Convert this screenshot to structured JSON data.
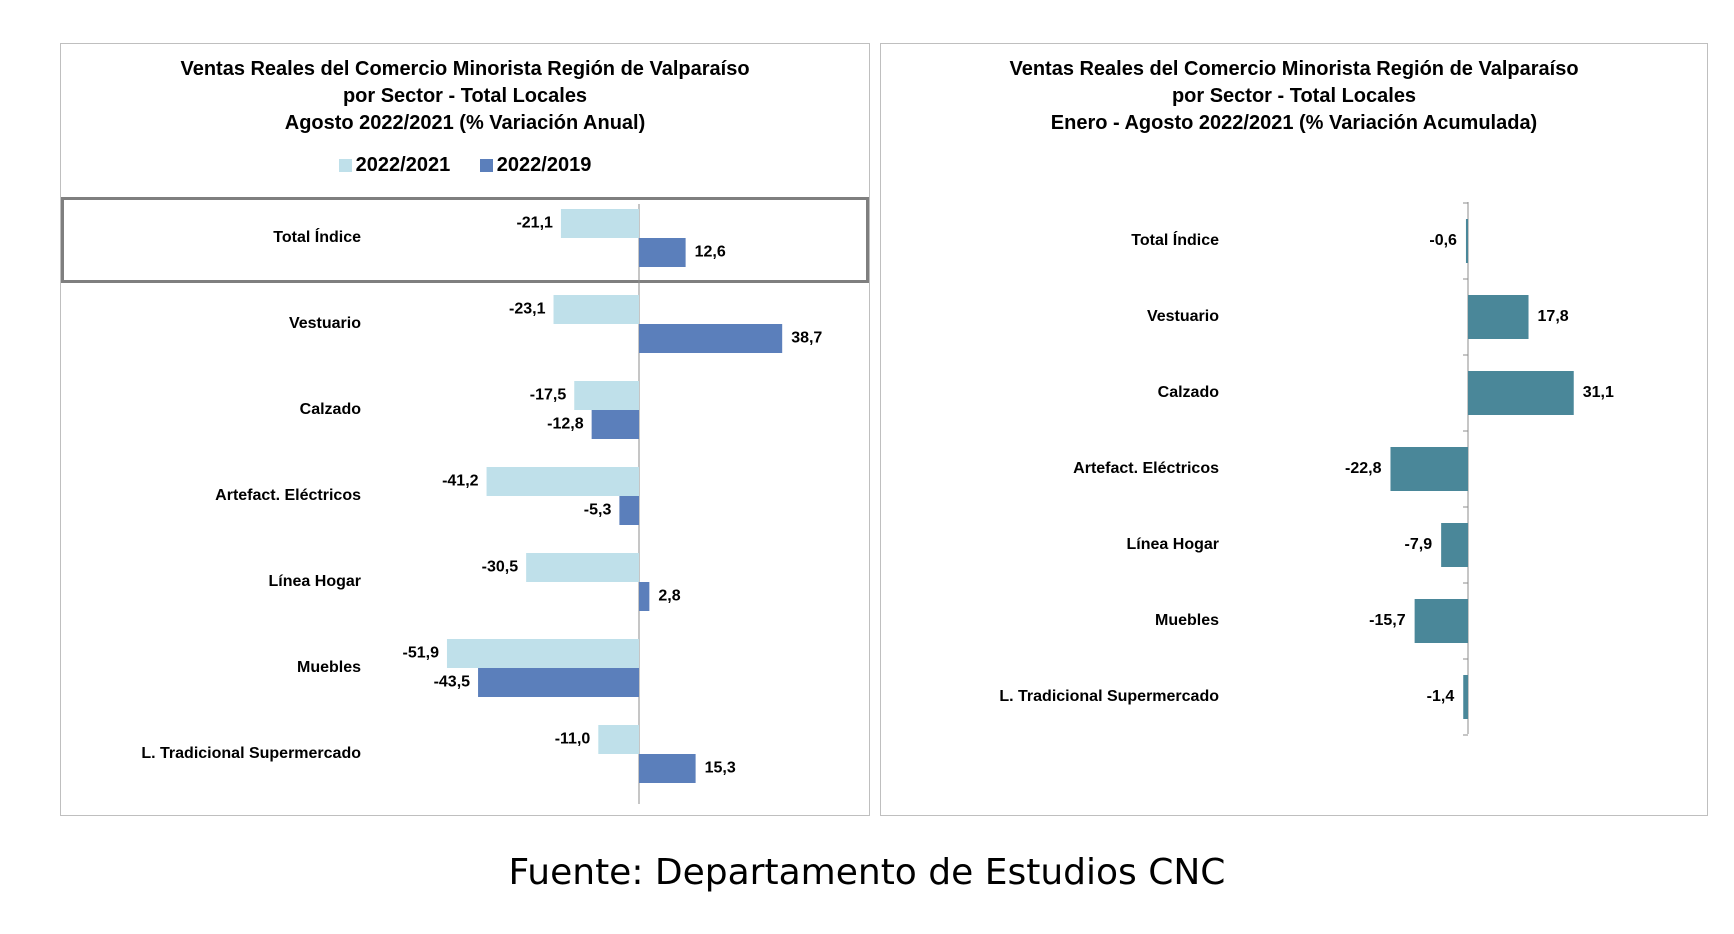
{
  "chart_data": [
    {
      "type": "bar",
      "orientation": "horizontal",
      "title_lines": [
        "Ventas Reales del Comercio Minorista Región de Valparaíso",
        "por Sector - Total Locales",
        "Agosto 2022/2021 (% Variación Anual)"
      ],
      "categories": [
        "Total Índice",
        "Vestuario",
        "Calzado",
        "Artefact. Eléctricos",
        "Línea Hogar",
        "Muebles",
        "L. Tradicional Supermercado"
      ],
      "series": [
        {
          "name": "2022/2021",
          "color": "#bfe0ea",
          "values": [
            -21.1,
            -23.1,
            -17.5,
            -41.2,
            -30.5,
            -51.9,
            -11.0
          ],
          "labels": [
            "-21,1",
            "-23,1",
            "-17,5",
            "-41,2",
            "-30,5",
            "-51,9",
            "-11,0"
          ]
        },
        {
          "name": "2022/2019",
          "color": "#5b7fbb",
          "values": [
            12.6,
            38.7,
            -12.8,
            -5.3,
            2.8,
            -43.5,
            15.3
          ],
          "labels": [
            "12,6",
            "38,7",
            "-12,8",
            "-5,3",
            "2,8",
            "-43,5",
            "15,3"
          ]
        }
      ],
      "highlighted_category": "Total Índice",
      "legend_position": "top",
      "grid": false
    },
    {
      "type": "bar",
      "orientation": "horizontal",
      "title_lines": [
        "Ventas Reales del Comercio Minorista Región de Valparaíso",
        "por Sector  - Total Locales",
        "Enero - Agosto 2022/2021 (% Variación Acumulada)"
      ],
      "categories": [
        "Total Índice",
        "Vestuario",
        "Calzado",
        "Artefact. Eléctricos",
        "Línea Hogar",
        "Muebles",
        "L. Tradicional Supermercado"
      ],
      "series": [
        {
          "color": "#4a8799",
          "values": [
            -0.6,
            17.8,
            31.1,
            -22.8,
            -7.9,
            -15.7,
            -1.4
          ],
          "labels": [
            "-0,6",
            "17,8",
            "31,1",
            "-22,8",
            "-7,9",
            "-15,7",
            "-1,4"
          ]
        }
      ],
      "grid": false
    }
  ],
  "source_note": "Fuente: Departamento de Estudios CNC"
}
